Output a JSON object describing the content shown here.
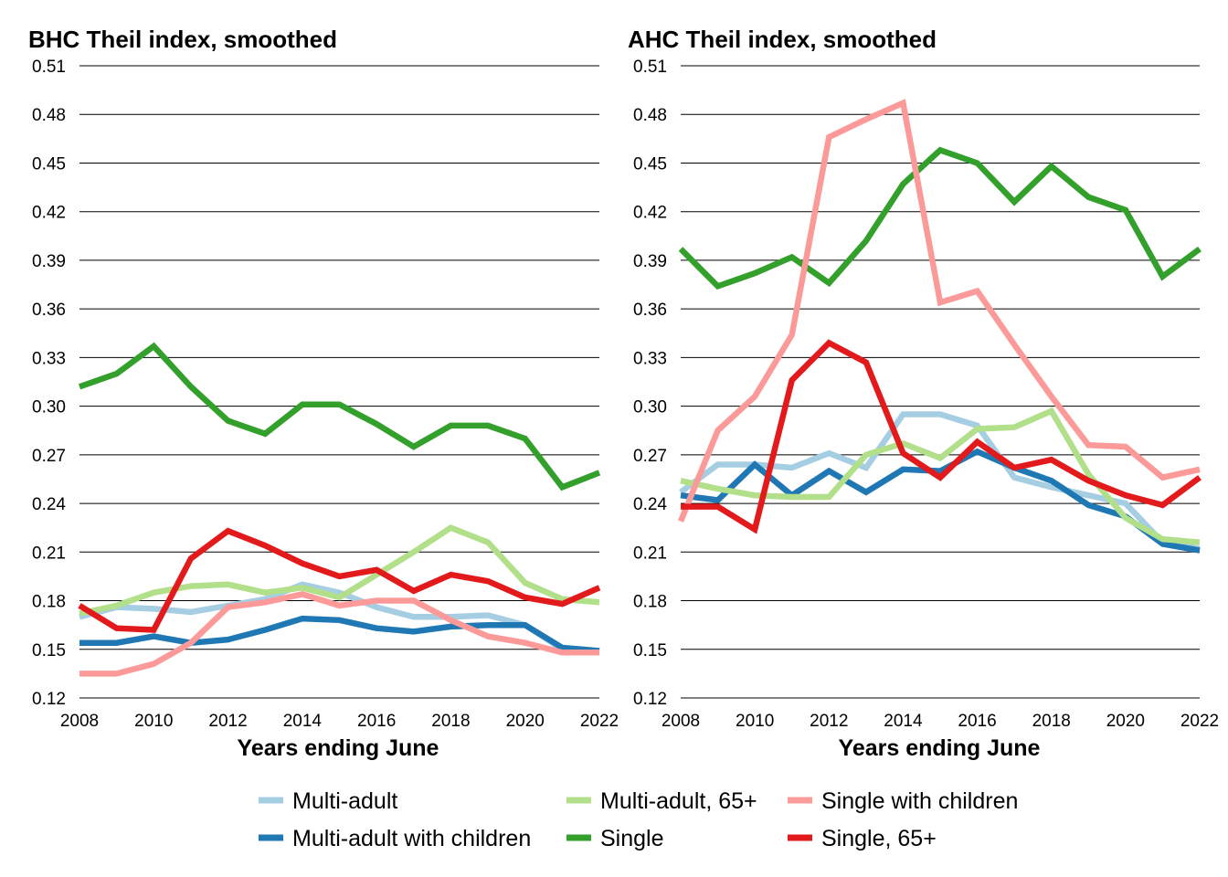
{
  "colors": {
    "multi_adult": "#a6cee3",
    "multi_adult_children": "#1f78b4",
    "multi_adult_65": "#b2df8a",
    "single": "#33a02c",
    "single_children": "#fb9a99",
    "single_65": "#e31a1c"
  },
  "legend": [
    {
      "key": "multi_adult",
      "label": "Multi-adult"
    },
    {
      "key": "multi_adult_65",
      "label": "Multi-adult, 65+"
    },
    {
      "key": "single_children",
      "label": "Single with children"
    },
    {
      "key": "multi_adult_children",
      "label": "Multi-adult with children"
    },
    {
      "key": "single",
      "label": "Single"
    },
    {
      "key": "single_65",
      "label": "Single, 65+"
    }
  ],
  "chart_data": [
    {
      "type": "line",
      "title": "BHC Theil index, smoothed",
      "xlabel": "Years ending June",
      "ylabel": "",
      "x": [
        2008,
        2009,
        2010,
        2011,
        2012,
        2013,
        2014,
        2015,
        2016,
        2017,
        2018,
        2019,
        2020,
        2021,
        2022
      ],
      "xticks": [
        2008,
        2010,
        2012,
        2014,
        2016,
        2018,
        2020,
        2022
      ],
      "yticks": [
        0.12,
        0.15,
        0.18,
        0.21,
        0.24,
        0.27,
        0.3,
        0.33,
        0.36,
        0.39,
        0.42,
        0.45,
        0.48,
        0.51
      ],
      "ytick_labels": [
        "0.12",
        "0.15",
        "0.18",
        "0.21",
        "0.24",
        "0.27",
        "0.30",
        "0.33",
        "0.36",
        "0.39",
        "0.42",
        "0.45",
        "0.48",
        "0.51"
      ],
      "ylim": [
        0.12,
        0.51
      ],
      "xlim": [
        2008,
        2022
      ],
      "grid": "horizontal",
      "series": [
        {
          "key": "multi_adult",
          "name": "Multi-adult",
          "values": [
            0.17,
            0.176,
            0.175,
            0.173,
            0.177,
            0.181,
            0.19,
            0.185,
            0.176,
            0.17,
            0.17,
            0.171,
            0.165,
            0.15,
            0.149
          ]
        },
        {
          "key": "multi_adult_children",
          "name": "Multi-adult with children",
          "values": [
            0.154,
            0.154,
            0.158,
            0.154,
            0.156,
            0.162,
            0.169,
            0.168,
            0.163,
            0.161,
            0.164,
            0.165,
            0.165,
            0.151,
            0.149
          ]
        },
        {
          "key": "multi_adult_65",
          "name": "Multi-adult, 65+",
          "values": [
            0.172,
            0.177,
            0.185,
            0.189,
            0.19,
            0.185,
            0.188,
            0.182,
            0.196,
            0.21,
            0.225,
            0.216,
            0.191,
            0.181,
            0.179
          ]
        },
        {
          "key": "single",
          "name": "Single",
          "values": [
            0.312,
            0.32,
            0.337,
            0.312,
            0.291,
            0.283,
            0.301,
            0.301,
            0.289,
            0.275,
            0.288,
            0.288,
            0.28,
            0.25,
            0.259
          ]
        },
        {
          "key": "single_children",
          "name": "Single with children",
          "values": [
            0.135,
            0.135,
            0.141,
            0.154,
            0.176,
            0.179,
            0.184,
            0.177,
            0.18,
            0.18,
            0.168,
            0.158,
            0.154,
            0.148,
            0.148
          ]
        },
        {
          "key": "single_65",
          "name": "Single, 65+",
          "values": [
            0.177,
            0.163,
            0.162,
            0.206,
            0.223,
            0.214,
            0.203,
            0.195,
            0.199,
            0.186,
            0.196,
            0.192,
            0.182,
            0.178,
            0.188
          ]
        }
      ]
    },
    {
      "type": "line",
      "title": "AHC Theil index, smoothed",
      "xlabel": "Years ending June",
      "ylabel": "",
      "x": [
        2008,
        2009,
        2010,
        2011,
        2012,
        2013,
        2014,
        2015,
        2016,
        2017,
        2018,
        2019,
        2020,
        2021,
        2022
      ],
      "xticks": [
        2008,
        2010,
        2012,
        2014,
        2016,
        2018,
        2020,
        2022
      ],
      "yticks": [
        0.12,
        0.15,
        0.18,
        0.21,
        0.24,
        0.27,
        0.3,
        0.33,
        0.36,
        0.39,
        0.42,
        0.45,
        0.48,
        0.51
      ],
      "ytick_labels": [
        "0.12",
        "0.15",
        "0.18",
        "0.21",
        "0.24",
        "0.27",
        "0.30",
        "0.33",
        "0.36",
        "0.39",
        "0.42",
        "0.45",
        "0.48",
        "0.51"
      ],
      "ylim": [
        0.12,
        0.51
      ],
      "xlim": [
        2008,
        2022
      ],
      "grid": "horizontal",
      "series": [
        {
          "key": "multi_adult",
          "name": "Multi-adult",
          "values": [
            0.247,
            0.264,
            0.264,
            0.262,
            0.271,
            0.262,
            0.295,
            0.295,
            0.288,
            0.256,
            0.25,
            0.245,
            0.24,
            0.216,
            0.212
          ]
        },
        {
          "key": "multi_adult_children",
          "name": "Multi-adult with children",
          "values": [
            0.245,
            0.242,
            0.264,
            0.245,
            0.26,
            0.247,
            0.261,
            0.26,
            0.272,
            0.262,
            0.254,
            0.239,
            0.232,
            0.215,
            0.211
          ]
        },
        {
          "key": "multi_adult_65",
          "name": "Multi-adult, 65+",
          "values": [
            0.254,
            0.249,
            0.245,
            0.244,
            0.244,
            0.27,
            0.277,
            0.268,
            0.286,
            0.287,
            0.297,
            0.258,
            0.231,
            0.218,
            0.216
          ]
        },
        {
          "key": "single",
          "name": "Single",
          "values": [
            0.397,
            0.374,
            0.382,
            0.392,
            0.376,
            0.402,
            0.437,
            0.458,
            0.45,
            0.426,
            0.448,
            0.429,
            0.421,
            0.38,
            0.397
          ]
        },
        {
          "key": "single_children",
          "name": "Single with children",
          "values": [
            0.229,
            0.285,
            0.306,
            0.344,
            0.466,
            0.477,
            0.487,
            0.364,
            0.371,
            0.338,
            0.306,
            0.276,
            0.275,
            0.256,
            0.261
          ]
        },
        {
          "key": "single_65",
          "name": "Single, 65+",
          "values": [
            0.238,
            0.238,
            0.224,
            0.316,
            0.339,
            0.327,
            0.271,
            0.256,
            0.278,
            0.262,
            0.267,
            0.254,
            0.245,
            0.239,
            0.256
          ]
        }
      ]
    }
  ]
}
